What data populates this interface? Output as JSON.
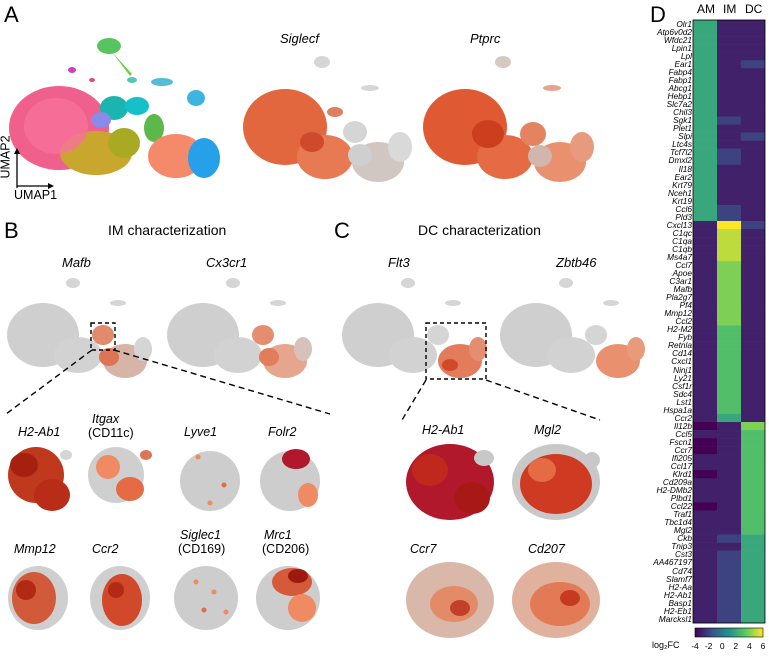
{
  "panels": {
    "a": {
      "letter": "A",
      "axis_y": "UMAP2",
      "axis_x": "UMAP1",
      "genes": [
        "Siglecf",
        "Ptprc"
      ]
    },
    "b": {
      "letter": "B",
      "title": "IM characterization",
      "genes": [
        "Mafb",
        "Cx3cr1"
      ],
      "zoom_genes": [
        {
          "name": "H2-Ab1",
          "sub": ""
        },
        {
          "name": "Itgax",
          "sub": "(CD11c)"
        },
        {
          "name": "Lyve1",
          "sub": ""
        },
        {
          "name": "Folr2",
          "sub": ""
        },
        {
          "name": "Mmp12",
          "sub": ""
        },
        {
          "name": "Ccr2",
          "sub": ""
        },
        {
          "name": "Siglec1",
          "sub": "(CD169)"
        },
        {
          "name": "Mrc1",
          "sub": "(CD206)"
        }
      ]
    },
    "c": {
      "letter": "C",
      "title": "DC characterization",
      "genes": [
        "Flt3",
        "Zbtb46"
      ],
      "zoom_genes": [
        "H2-Ab1",
        "Mgl2",
        "Ccr7",
        "Cd207"
      ]
    },
    "d": {
      "letter": "D"
    }
  },
  "colors": {
    "expr_high": "#b2182b",
    "expr_mid": "#ef8a62",
    "expr_low": "#c8c8c8"
  },
  "chart_data": {
    "type": "heatmap",
    "columns": [
      "AM",
      "IM",
      "DC"
    ],
    "rows": [
      "Olr1",
      "Atp6v0d2",
      "Wfdc21",
      "Lpin1",
      "Lpl",
      "Ear1",
      "Fabp4",
      "Fabp1",
      "Abcg1",
      "Hebp1",
      "Slc7a2",
      "Chil3",
      "Sgk1",
      "Plet1",
      "Slpi",
      "Ltc4s",
      "Tcf7l2",
      "Dmxl2",
      "Il18",
      "Ear2",
      "Krt79",
      "Nceh1",
      "Krt19",
      "Ccl6",
      "Pld3",
      "Cxcl13",
      "C1qc",
      "C1qa",
      "C1qb",
      "Ms4a7",
      "Ccl7",
      "Apoe",
      "C3ar1",
      "Mafb",
      "Pla2g7",
      "Pf4",
      "Mmp12",
      "Ccl2",
      "H2-M2",
      "Fyb",
      "Retnla",
      "Cd14",
      "Cxcl1",
      "Ninj1",
      "Ly21",
      "Csf1r",
      "Sdc4",
      "Lst1",
      "Hspa1a",
      "Ccr2",
      "Il12b",
      "Ccl5",
      "Fscn1",
      "Ccr7",
      "Ifi205",
      "Ccl17",
      "Klrd1",
      "Cd209a",
      "H2-DMb2",
      "Plbd1",
      "Ccl22",
      "Traf1",
      "Tbc1d4",
      "Mgl2",
      "Ckb",
      "Tnip3",
      "Cst3",
      "AA467197",
      "Cd74",
      "Slamf7",
      "H2-Aa",
      "H2-Ab1",
      "Basp1",
      "H2-Eb1",
      "Marcksl1"
    ],
    "values": [
      [
        2,
        -3,
        -3
      ],
      [
        2,
        -3,
        -3
      ],
      [
        2,
        -3,
        -3
      ],
      [
        2,
        -3,
        -3
      ],
      [
        2,
        -3,
        -3
      ],
      [
        2,
        -3,
        -2
      ],
      [
        2,
        -3,
        -3
      ],
      [
        2,
        -3,
        -3
      ],
      [
        2,
        -3,
        -3
      ],
      [
        2,
        -3,
        -3
      ],
      [
        2,
        -3,
        -3
      ],
      [
        2,
        -3,
        -3
      ],
      [
        2,
        -2,
        -3
      ],
      [
        2,
        -3,
        -3
      ],
      [
        2,
        -3,
        -2
      ],
      [
        2,
        -3,
        -3
      ],
      [
        2,
        -2,
        -3
      ],
      [
        2,
        -2,
        -3
      ],
      [
        2,
        -3,
        -3
      ],
      [
        2,
        -3,
        -3
      ],
      [
        2,
        -3,
        -3
      ],
      [
        2,
        -3,
        -3
      ],
      [
        2,
        -3,
        -3
      ],
      [
        2,
        -2,
        -3
      ],
      [
        2,
        -2,
        -3
      ],
      [
        -3,
        6,
        -2
      ],
      [
        -3,
        5,
        -3
      ],
      [
        -3,
        5,
        -3
      ],
      [
        -3,
        5,
        -3
      ],
      [
        -3,
        5,
        -3
      ],
      [
        -3,
        4,
        -3
      ],
      [
        -3,
        4,
        -3
      ],
      [
        -3,
        4,
        -3
      ],
      [
        -3,
        4,
        -3
      ],
      [
        -3,
        4,
        -3
      ],
      [
        -3,
        4,
        -3
      ],
      [
        -3,
        4,
        -3
      ],
      [
        -3,
        4,
        -3
      ],
      [
        -3,
        3,
        -3
      ],
      [
        -3,
        3,
        -3
      ],
      [
        -3,
        3,
        -3
      ],
      [
        -3,
        3,
        -3
      ],
      [
        -3,
        3,
        -3
      ],
      [
        -3,
        3,
        -3
      ],
      [
        -3,
        3,
        -3
      ],
      [
        -3,
        3,
        -3
      ],
      [
        -3,
        3,
        -3
      ],
      [
        -3,
        3,
        -3
      ],
      [
        -3,
        3,
        -3
      ],
      [
        -3,
        2,
        -3
      ],
      [
        -4,
        -3,
        4
      ],
      [
        -3,
        -3,
        3
      ],
      [
        -4,
        -3,
        3
      ],
      [
        -4,
        -3,
        3
      ],
      [
        -3,
        -3,
        3
      ],
      [
        -3,
        -3,
        3
      ],
      [
        -4,
        -3,
        3
      ],
      [
        -3,
        -3,
        3
      ],
      [
        -3,
        -3,
        3
      ],
      [
        -3,
        -3,
        3
      ],
      [
        -4,
        -3,
        3
      ],
      [
        -3,
        -3,
        3
      ],
      [
        -3,
        -3,
        3
      ],
      [
        -3,
        -3,
        3
      ],
      [
        -3,
        -2,
        2
      ],
      [
        -3,
        -3,
        2
      ],
      [
        -3,
        -2,
        2
      ],
      [
        -3,
        -2,
        2
      ],
      [
        -3,
        -2,
        2
      ],
      [
        -3,
        -2,
        2
      ],
      [
        -3,
        -2,
        2
      ],
      [
        -3,
        -2,
        2
      ],
      [
        -3,
        -2,
        2
      ],
      [
        -3,
        -2,
        2
      ],
      [
        -3,
        -2,
        2
      ]
    ],
    "colorbar": {
      "label": "log₂FC",
      "ticks": [
        "-4",
        "-2",
        "0",
        "2",
        "4",
        "6"
      ],
      "min": -4,
      "max": 6
    }
  }
}
